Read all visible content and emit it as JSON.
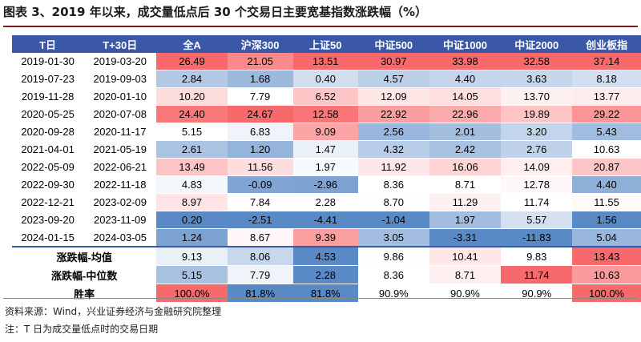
{
  "title": "图表 3、2019 年以来，成交量低点后 30 个交易日主要宽基指数涨跌幅（%）",
  "table": {
    "headers": [
      "T日",
      "T+30日",
      "全A",
      "沪深300",
      "上证50",
      "中证500",
      "中证1000",
      "中证2000",
      "创业板指"
    ],
    "rows": [
      {
        "t": "2019-01-30",
        "t30": "2019-03-20",
        "values": [
          "26.49",
          "21.05",
          "13.51",
          "30.97",
          "33.98",
          "32.58",
          "37.14"
        ]
      },
      {
        "t": "2019-07-23",
        "t30": "2019-09-03",
        "values": [
          "2.84",
          "1.68",
          "0.40",
          "4.57",
          "4.40",
          "3.63",
          "8.18"
        ]
      },
      {
        "t": "2019-11-28",
        "t30": "2020-01-10",
        "values": [
          "10.20",
          "7.79",
          "6.52",
          "12.09",
          "14.05",
          "13.70",
          "13.77"
        ]
      },
      {
        "t": "2020-05-25",
        "t30": "2020-07-08",
        "values": [
          "24.40",
          "24.67",
          "12.58",
          "22.92",
          "22.96",
          "19.89",
          "29.22"
        ]
      },
      {
        "t": "2020-09-28",
        "t30": "2020-11-17",
        "values": [
          "5.15",
          "6.83",
          "9.09",
          "2.56",
          "2.01",
          "3.20",
          "5.43"
        ]
      },
      {
        "t": "2021-04-01",
        "t30": "2021-05-19",
        "values": [
          "2.61",
          "1.20",
          "1.47",
          "4.32",
          "2.42",
          "2.76",
          "10.63"
        ]
      },
      {
        "t": "2022-05-09",
        "t30": "2022-06-21",
        "values": [
          "13.49",
          "11.56",
          "1.97",
          "11.92",
          "16.06",
          "14.09",
          "20.87"
        ]
      },
      {
        "t": "2022-09-30",
        "t30": "2022-11-18",
        "values": [
          "4.83",
          "-0.09",
          "-2.96",
          "8.36",
          "8.71",
          "12.78",
          "4.40"
        ]
      },
      {
        "t": "2022-12-21",
        "t30": "2023-02-09",
        "values": [
          "8.97",
          "7.84",
          "2.28",
          "8.70",
          "11.29",
          "11.74",
          "11.55"
        ]
      },
      {
        "t": "2023-09-20",
        "t30": "2023-11-09",
        "values": [
          "0.20",
          "-2.51",
          "-4.41",
          "-1.04",
          "1.97",
          "5.57",
          "1.56"
        ]
      },
      {
        "t": "2024-01-15",
        "t30": "2024-03-05",
        "values": [
          "1.24",
          "8.67",
          "9.39",
          "3.05",
          "-3.31",
          "-11.83",
          "5.04"
        ]
      }
    ],
    "summary": [
      {
        "label": "涨跌幅-均值",
        "values": [
          "9.13",
          "8.06",
          "4.53",
          "9.86",
          "10.41",
          "9.83",
          "13.43"
        ]
      },
      {
        "label": "涨跌幅-中位数",
        "values": [
          "5.15",
          "7.79",
          "2.28",
          "8.36",
          "8.71",
          "11.74",
          "10.63"
        ]
      },
      {
        "label": "胜率",
        "values": [
          "100.0%",
          "81.8%",
          "81.8%",
          "90.9%",
          "90.9%",
          "90.9%",
          "100.0%"
        ]
      }
    ]
  },
  "colors": {
    "header_bg": "#3a57a8",
    "red_high": "#f8696b",
    "white_mid": "#ffffff",
    "blue_low": "#5a8ac6"
  },
  "notes": {
    "source": "资料来源：Wind，兴业证券经济与金融研究院整理",
    "note": "注：T 日为成交量低点时的交易日期"
  }
}
